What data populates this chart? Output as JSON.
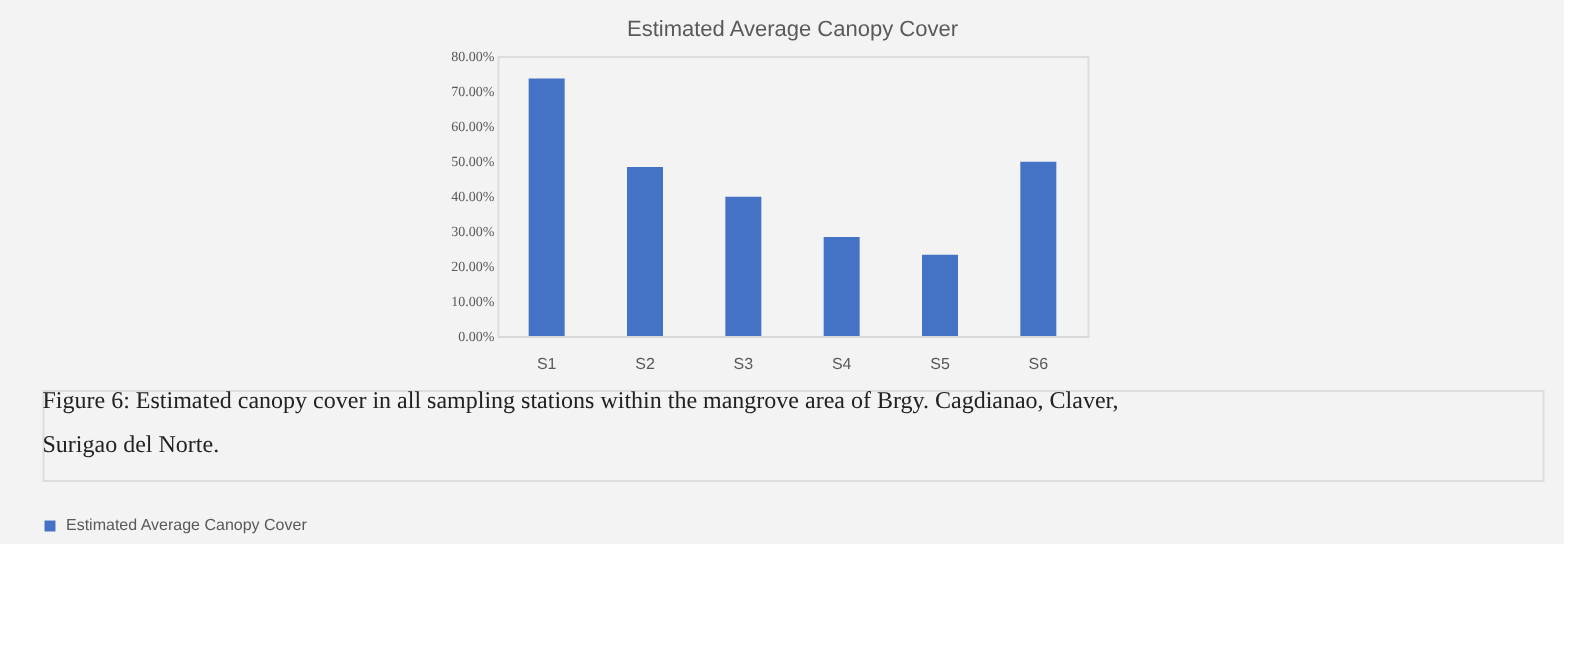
{
  "chart_data": {
    "type": "bar",
    "title": "Estimated Average Canopy Cover",
    "categories": [
      "S1",
      "S2",
      "S3",
      "S4",
      "S5",
      "S6"
    ],
    "series": [
      {
        "name": "Estimated  Average Canopy Cover",
        "color": "#4472c4",
        "values": [
          73.6,
          48.3,
          39.8,
          28.3,
          23.2,
          49.8
        ]
      }
    ],
    "ylim": [
      0,
      80
    ],
    "yticks": [
      {
        "value": 0,
        "label": "0.00%"
      },
      {
        "value": 10,
        "label": "10.00%"
      },
      {
        "value": 20,
        "label": "20.00%"
      },
      {
        "value": 30,
        "label": "30.00%"
      },
      {
        "value": 40,
        "label": "40.00%"
      },
      {
        "value": 50,
        "label": "50.00%"
      },
      {
        "value": 60,
        "label": "60.00%"
      },
      {
        "value": 70,
        "label": "70.00%"
      },
      {
        "value": 80,
        "label": "80.00%"
      }
    ],
    "grid": false,
    "legend": "bottom",
    "annotations": [
      "Figure 6: Estimated canopy cover in all sampling stations within the mangrove area of Brgy. Cagdianao, Claver, Surigao del Norte."
    ]
  }
}
